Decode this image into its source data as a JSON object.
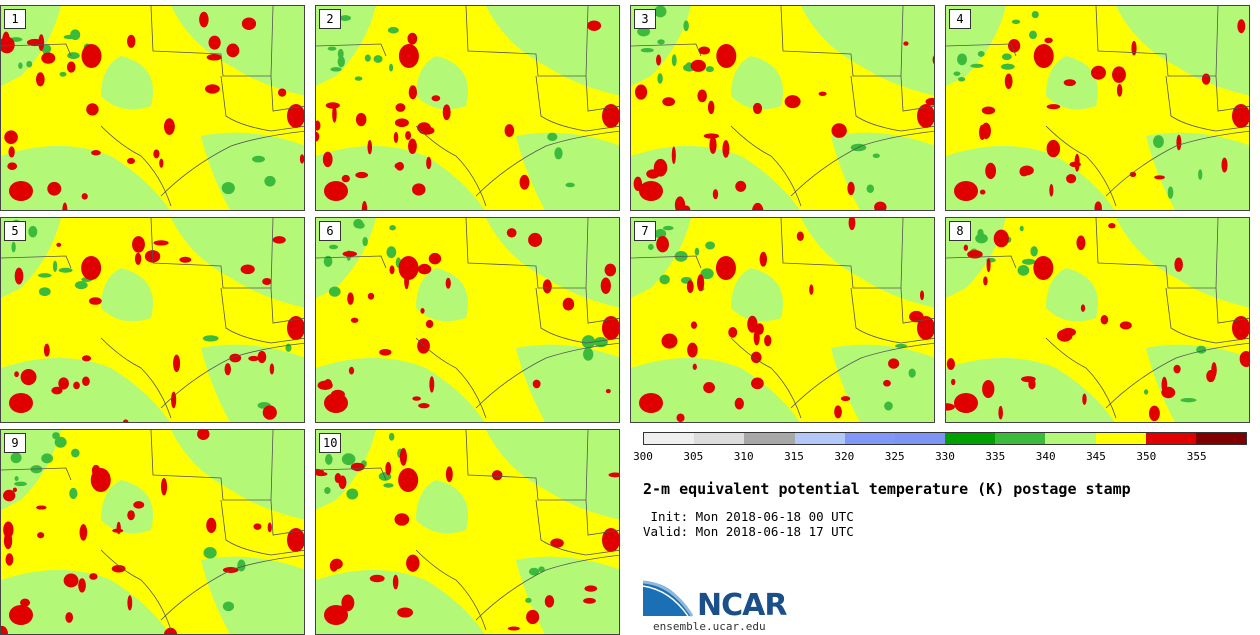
{
  "panels": [
    {
      "label": "1"
    },
    {
      "label": "2"
    },
    {
      "label": "3"
    },
    {
      "label": "4"
    },
    {
      "label": "5"
    },
    {
      "label": "6"
    },
    {
      "label": "7"
    },
    {
      "label": "8"
    },
    {
      "label": "9"
    },
    {
      "label": "10"
    }
  ],
  "colorbar": {
    "colors": [
      "#efefef",
      "#dcdcdc",
      "#a8a8a8",
      "#b3c8f8",
      "#8099f8",
      "#7c95f4",
      "#00a000",
      "#3cba3c",
      "#b4f878",
      "#ffff00",
      "#e00000",
      "#800000"
    ],
    "ticks": [
      "300",
      "305",
      "310",
      "315",
      "320",
      "325",
      "330",
      "335",
      "340",
      "345",
      "350",
      "355"
    ]
  },
  "title": "2-m equivalent potential temperature (K) postage stamp",
  "init_text": " Init: Mon 2018-06-18 00 UTC",
  "valid_text": "Valid: Mon 2018-06-18 17 UTC",
  "logo": {
    "text": "NCAR",
    "site": "ensemble.ucar.edu"
  }
}
